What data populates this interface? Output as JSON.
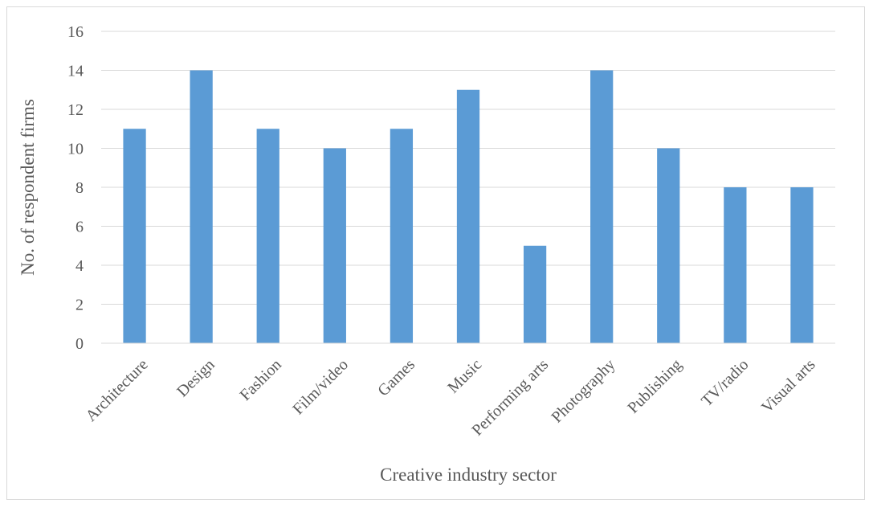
{
  "chart_data": {
    "type": "bar",
    "categories": [
      "Architecture",
      "Design",
      "Fashion",
      "Film/video",
      "Games",
      "Music",
      "Performing arts",
      "Photography",
      "Publishing",
      "TV/radio",
      "Visual arts"
    ],
    "values": [
      11,
      14,
      11,
      10,
      11,
      13,
      5,
      14,
      10,
      8,
      8
    ],
    "title": "",
    "xlabel": "Creative industry sector",
    "ylabel": "No. of respondent firms",
    "ylim": [
      0,
      16
    ],
    "yticks": [
      "0",
      "2",
      "4",
      "6",
      "8",
      "10",
      "12",
      "14",
      "16"
    ],
    "grid": true,
    "legend": "none",
    "bar_color": "#5b9bd5",
    "grid_color": "#d9d9d9",
    "text_color": "#595959"
  }
}
